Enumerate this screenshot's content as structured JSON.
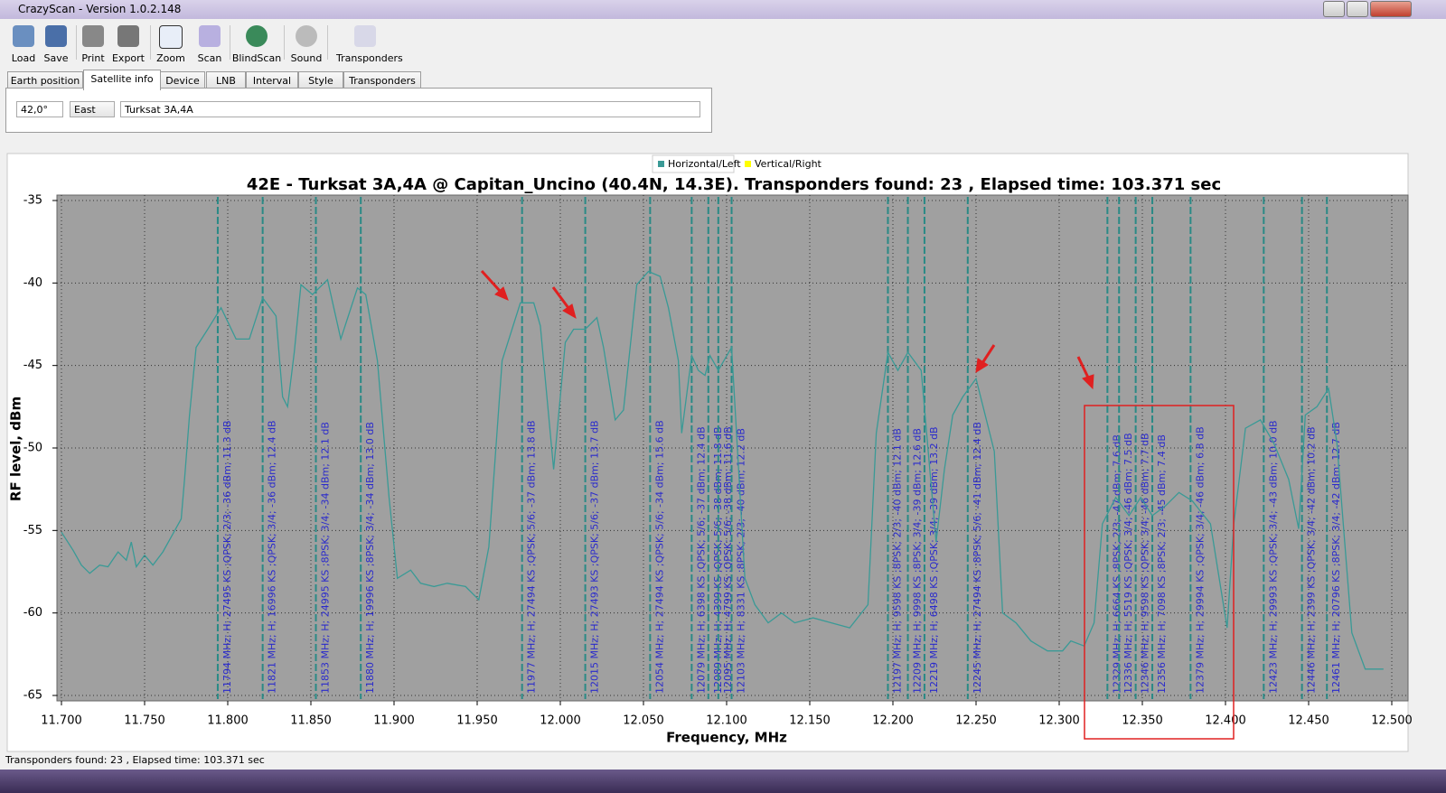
{
  "window": {
    "title": "CrazyScan - Version 1.0.2.148"
  },
  "toolbar": [
    "Load",
    "Save",
    "Print",
    "Export",
    "Zoom",
    "Scan",
    "BlindScan",
    "Sound",
    "Transponders"
  ],
  "tabs": [
    {
      "label": "Earth position"
    },
    {
      "label": "Satellite info",
      "active": true
    },
    {
      "label": "Device"
    },
    {
      "label": "LNB"
    },
    {
      "label": "Interval"
    },
    {
      "label": "Style"
    },
    {
      "label": "Transponders"
    }
  ],
  "fields": {
    "angle": "42,0°",
    "direction": "East",
    "satellite": "Turksat 3A,4A"
  },
  "chart_data": {
    "type": "line",
    "title": "42E - Turksat 3A,4A @ Capitan_Uncino (40.4N, 14.3E). Transponders found: 23 , Elapsed time: 103.371 sec",
    "xlabel": "Frequency, MHz",
    "ylabel": "RF level, dBm",
    "series": [
      {
        "name": "Horizontal/Left",
        "color": "#3a9a96",
        "x": [
          11.7,
          11.707,
          11.712,
          11.717,
          11.723,
          11.728,
          11.734,
          11.739,
          11.742,
          11.745,
          11.75,
          11.755,
          11.761,
          11.766,
          11.772,
          11.774,
          11.777,
          11.781,
          11.788,
          11.796,
          11.805,
          11.813,
          11.821,
          11.829,
          11.833,
          11.836,
          11.84,
          11.844,
          11.851,
          11.86,
          11.868,
          11.878,
          11.883,
          11.89,
          11.897,
          11.902,
          11.91,
          11.916,
          11.924,
          11.932,
          11.943,
          11.951,
          11.957,
          11.965,
          11.976,
          11.984,
          11.988,
          11.996,
          12.003,
          12.008,
          12.015,
          12.022,
          12.026,
          12.033,
          12.038,
          12.046,
          12.053,
          12.06,
          12.065,
          12.071,
          12.073,
          12.079,
          12.083,
          12.087,
          12.09,
          12.095,
          12.103,
          12.111,
          12.117,
          12.125,
          12.133,
          12.141,
          12.152,
          12.163,
          12.174,
          12.185,
          12.19,
          12.197,
          12.203,
          12.209,
          12.217,
          12.226,
          12.231,
          12.236,
          12.242,
          12.25,
          12.261,
          12.266,
          12.274,
          12.283,
          12.293,
          12.302,
          12.307,
          12.315,
          12.321,
          12.326,
          12.334,
          12.342,
          12.349,
          12.356,
          12.364,
          12.372,
          12.38,
          12.391,
          12.401,
          12.405,
          12.412,
          12.421,
          12.429,
          12.438,
          12.444,
          12.448,
          12.455,
          12.462,
          12.467,
          12.476,
          12.484,
          12.495
        ],
        "values": [
          -55.1,
          -56.2,
          -57.1,
          -57.6,
          -57.1,
          -57.2,
          -56.3,
          -56.8,
          -55.7,
          -57.2,
          -56.5,
          -57.1,
          -56.3,
          -55.4,
          -54.3,
          -51.9,
          -48.0,
          -43.9,
          -42.8,
          -41.5,
          -43.4,
          -43.4,
          -40.9,
          -42.0,
          -46.9,
          -47.5,
          -44.2,
          -40.1,
          -40.7,
          -39.8,
          -43.4,
          -40.3,
          -40.7,
          -44.7,
          -53.0,
          -57.9,
          -57.4,
          -58.2,
          -58.4,
          -58.2,
          -58.4,
          -59.2,
          -56.0,
          -44.7,
          -41.2,
          -41.2,
          -42.6,
          -51.3,
          -43.6,
          -42.8,
          -42.8,
          -42.1,
          -43.9,
          -48.3,
          -47.7,
          -40.1,
          -39.3,
          -39.6,
          -41.5,
          -44.7,
          -49.1,
          -44.4,
          -45.3,
          -45.6,
          -44.4,
          -45.3,
          -43.9,
          -57.9,
          -59.5,
          -60.6,
          -60.0,
          -60.6,
          -60.3,
          -60.6,
          -60.9,
          -59.5,
          -49.1,
          -44.2,
          -45.3,
          -44.2,
          -45.3,
          -55.7,
          -51.3,
          -48.0,
          -46.9,
          -45.8,
          -50.2,
          -60.0,
          -60.6,
          -61.7,
          -62.3,
          -62.3,
          -61.7,
          -62.0,
          -60.6,
          -54.6,
          -53.0,
          -54.1,
          -53.0,
          -54.1,
          -53.5,
          -52.7,
          -53.2,
          -54.6,
          -60.9,
          -54.6,
          -48.8,
          -48.3,
          -49.7,
          -51.9,
          -54.9,
          -48.0,
          -47.5,
          -46.4,
          -49.7,
          -61.2,
          -63.4,
          -63.4
        ]
      },
      {
        "name": "Vertical/Right",
        "color": "#ffff00"
      }
    ],
    "transponders": [
      {
        "x": 11.794,
        "label": "11794 MHz; H; 27495 KS ;QPSK; 2/3; -36 dBm; 11.3 dB"
      },
      {
        "x": 11.821,
        "label": "11821 MHz; H; 16996 KS ;QPSK; 3/4; -36 dBm; 12.4 dB"
      },
      {
        "x": 11.853,
        "label": "11853 MHz; H; 24995 KS ;8PSK; 3/4; -34 dBm; 12.1 dB"
      },
      {
        "x": 11.88,
        "label": "11880 MHz; H; 19996 KS ;8PSK; 3/4; -34 dBm; 13.0 dB"
      },
      {
        "x": 11.977,
        "label": "11977 MHz; H; 27494 KS ;QPSK; 5/6; -37 dBm; 13.8 dB"
      },
      {
        "x": 12.015,
        "label": "12015 MHz; H; 27493 KS ;QPSK; 5/6; -37 dBm; 13.7 dB"
      },
      {
        "x": 12.054,
        "label": "12054 MHz; H; 27494 KS ;QPSK; 5/6; -34 dBm; 15.6 dB"
      },
      {
        "x": 12.079,
        "label": "12079 MHz; H; 6398 KS ;QPSK; 5/6; -37 dBm; 12.4 dB"
      },
      {
        "x": 12.089,
        "label": "12089 MHz; H; 4399 KS ;QPSK; 5/6; -38 dBm; 11.8 dB"
      },
      {
        "x": 12.095,
        "label": "12095 MHz; H; 4799 KS ;QPSK; 5/6; -38 dBm; 11.6 dB"
      },
      {
        "x": 12.103,
        "label": "12103 MHz; H; 8331 KS ;8PSK; 2/3; -40 dBm; 12.2 dB"
      },
      {
        "x": 12.197,
        "label": "12197 MHz; H; 9598 KS ;8PSK; 2/3; -40 dBm; 12.1 dB"
      },
      {
        "x": 12.209,
        "label": "12209 MHz; H; 9998 KS ;8PSK; 3/4; -39 dBm; 12.6 dB"
      },
      {
        "x": 12.219,
        "label": "12219 MHz; H; 6498 KS ;QPSK; 3/4; -39 dBm; 13.2 dB"
      },
      {
        "x": 12.245,
        "label": "12245 MHz; H; 27494 KS ;8PSK; 5/6; -41 dBm; 12.4 dB"
      },
      {
        "x": 12.329,
        "label": "12329 MHz; H; 6664 KS ;8PSK; 2/3; -47 dBm; 7.6 dB"
      },
      {
        "x": 12.336,
        "label": "12336 MHz; H; 5519 KS ;QPSK; 3/4; -46 dBm; 7.5 dB"
      },
      {
        "x": 12.346,
        "label": "12346 MHz; H; 9598 KS ;QPSK; 3/4; -46 dBm; 7.7 dB"
      },
      {
        "x": 12.356,
        "label": "12356 MHz; H; 7098 KS ;8PSK; 2/3; -45 dBm; 7.4 dB"
      },
      {
        "x": 12.379,
        "label": "12379 MHz; H; 29994 KS ;QPSK; 3/4; -46 dBm; 6.8 dB"
      },
      {
        "x": 12.423,
        "label": "12423 MHz; H; 29993 KS ;QPSK; 3/4; -43 dBm; 10.0 dB"
      },
      {
        "x": 12.446,
        "label": "12446 MHz; H; 2399 KS ;QPSK; 3/4; -42 dBm; 10.2 dB"
      },
      {
        "x": 12.461,
        "label": "12461 MHz; H; 20796 KS ;8PSK; 3/4; -42 dBm; 12.7 dB"
      }
    ],
    "marker_color": "#2a8a86",
    "label_color": "#2a2acc",
    "xlim": [
      11.7,
      12.5
    ],
    "xticks": [
      {
        "value": 11.7,
        "label": "11.700"
      },
      {
        "value": 11.75,
        "label": "11.750"
      },
      {
        "value": 11.8,
        "label": "11.800"
      },
      {
        "value": 11.85,
        "label": "11.850"
      },
      {
        "value": 11.9,
        "label": "11.900"
      },
      {
        "value": 11.95,
        "label": "11.950"
      },
      {
        "value": 12.0,
        "label": "12.000"
      },
      {
        "value": 12.05,
        "label": "12.050"
      },
      {
        "value": 12.1,
        "label": "12.100"
      },
      {
        "value": 12.15,
        "label": "12.150"
      },
      {
        "value": 12.2,
        "label": "12.200"
      },
      {
        "value": 12.25,
        "label": "12.250"
      },
      {
        "value": 12.3,
        "label": "12.300"
      },
      {
        "value": 12.35,
        "label": "12.350"
      },
      {
        "value": 12.4,
        "label": "12.400"
      },
      {
        "value": 12.45,
        "label": "12.450"
      },
      {
        "value": 12.5,
        "label": "12.500"
      }
    ],
    "ylim": [
      -65,
      -35
    ],
    "yticks": [
      -35,
      -40,
      -45,
      -50,
      -55,
      -60,
      -65
    ],
    "grid": true
  },
  "status": "Transponders found: 23 , Elapsed time: 103.371 sec"
}
